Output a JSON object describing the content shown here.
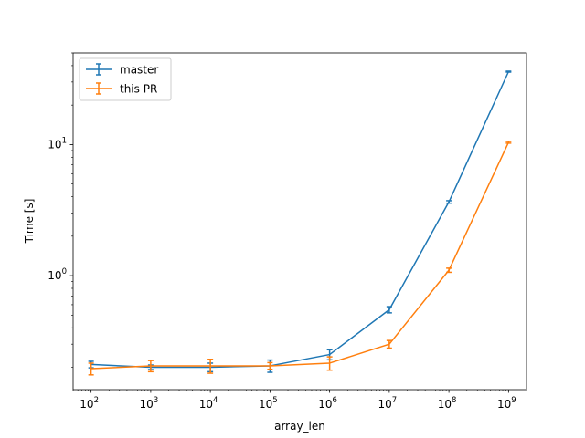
{
  "chart_data": {
    "type": "line",
    "title": "",
    "xlabel": "array_len",
    "ylabel": "Time [s]",
    "xscale": "log",
    "yscale": "log",
    "xlim": [
      50,
      2000000000
    ],
    "ylim": [
      0.135,
      50
    ],
    "grid": false,
    "legend_position": "top-left",
    "x": [
      100,
      1000,
      10000,
      100000,
      1000000,
      10000000,
      100000000,
      1000000000
    ],
    "x_ticks": [
      {
        "value": 100,
        "base": "10",
        "exp": "2"
      },
      {
        "value": 1000,
        "base": "10",
        "exp": "3"
      },
      {
        "value": 10000,
        "base": "10",
        "exp": "4"
      },
      {
        "value": 100000,
        "base": "10",
        "exp": "5"
      },
      {
        "value": 1000000,
        "base": "10",
        "exp": "6"
      },
      {
        "value": 10000000,
        "base": "10",
        "exp": "7"
      },
      {
        "value": 100000000,
        "base": "10",
        "exp": "8"
      },
      {
        "value": 1000000000,
        "base": "10",
        "exp": "9"
      }
    ],
    "y_ticks": [
      {
        "value": 1,
        "base": "10",
        "exp": "0"
      },
      {
        "value": 10,
        "base": "10",
        "exp": "1"
      }
    ],
    "series": [
      {
        "name": "master",
        "color": "#1f77b4",
        "values": [
          0.21,
          0.2,
          0.2,
          0.205,
          0.25,
          0.55,
          3.65,
          36.0
        ],
        "errors": [
          0.012,
          0.008,
          0.015,
          0.022,
          0.022,
          0.03,
          0.08,
          0.3
        ]
      },
      {
        "name": "this PR",
        "color": "#ff7f0e",
        "values": [
          0.195,
          0.205,
          0.205,
          0.205,
          0.215,
          0.3,
          1.1,
          10.4
        ],
        "errors": [
          0.02,
          0.02,
          0.025,
          0.012,
          0.025,
          0.02,
          0.04,
          0.15
        ]
      }
    ]
  }
}
